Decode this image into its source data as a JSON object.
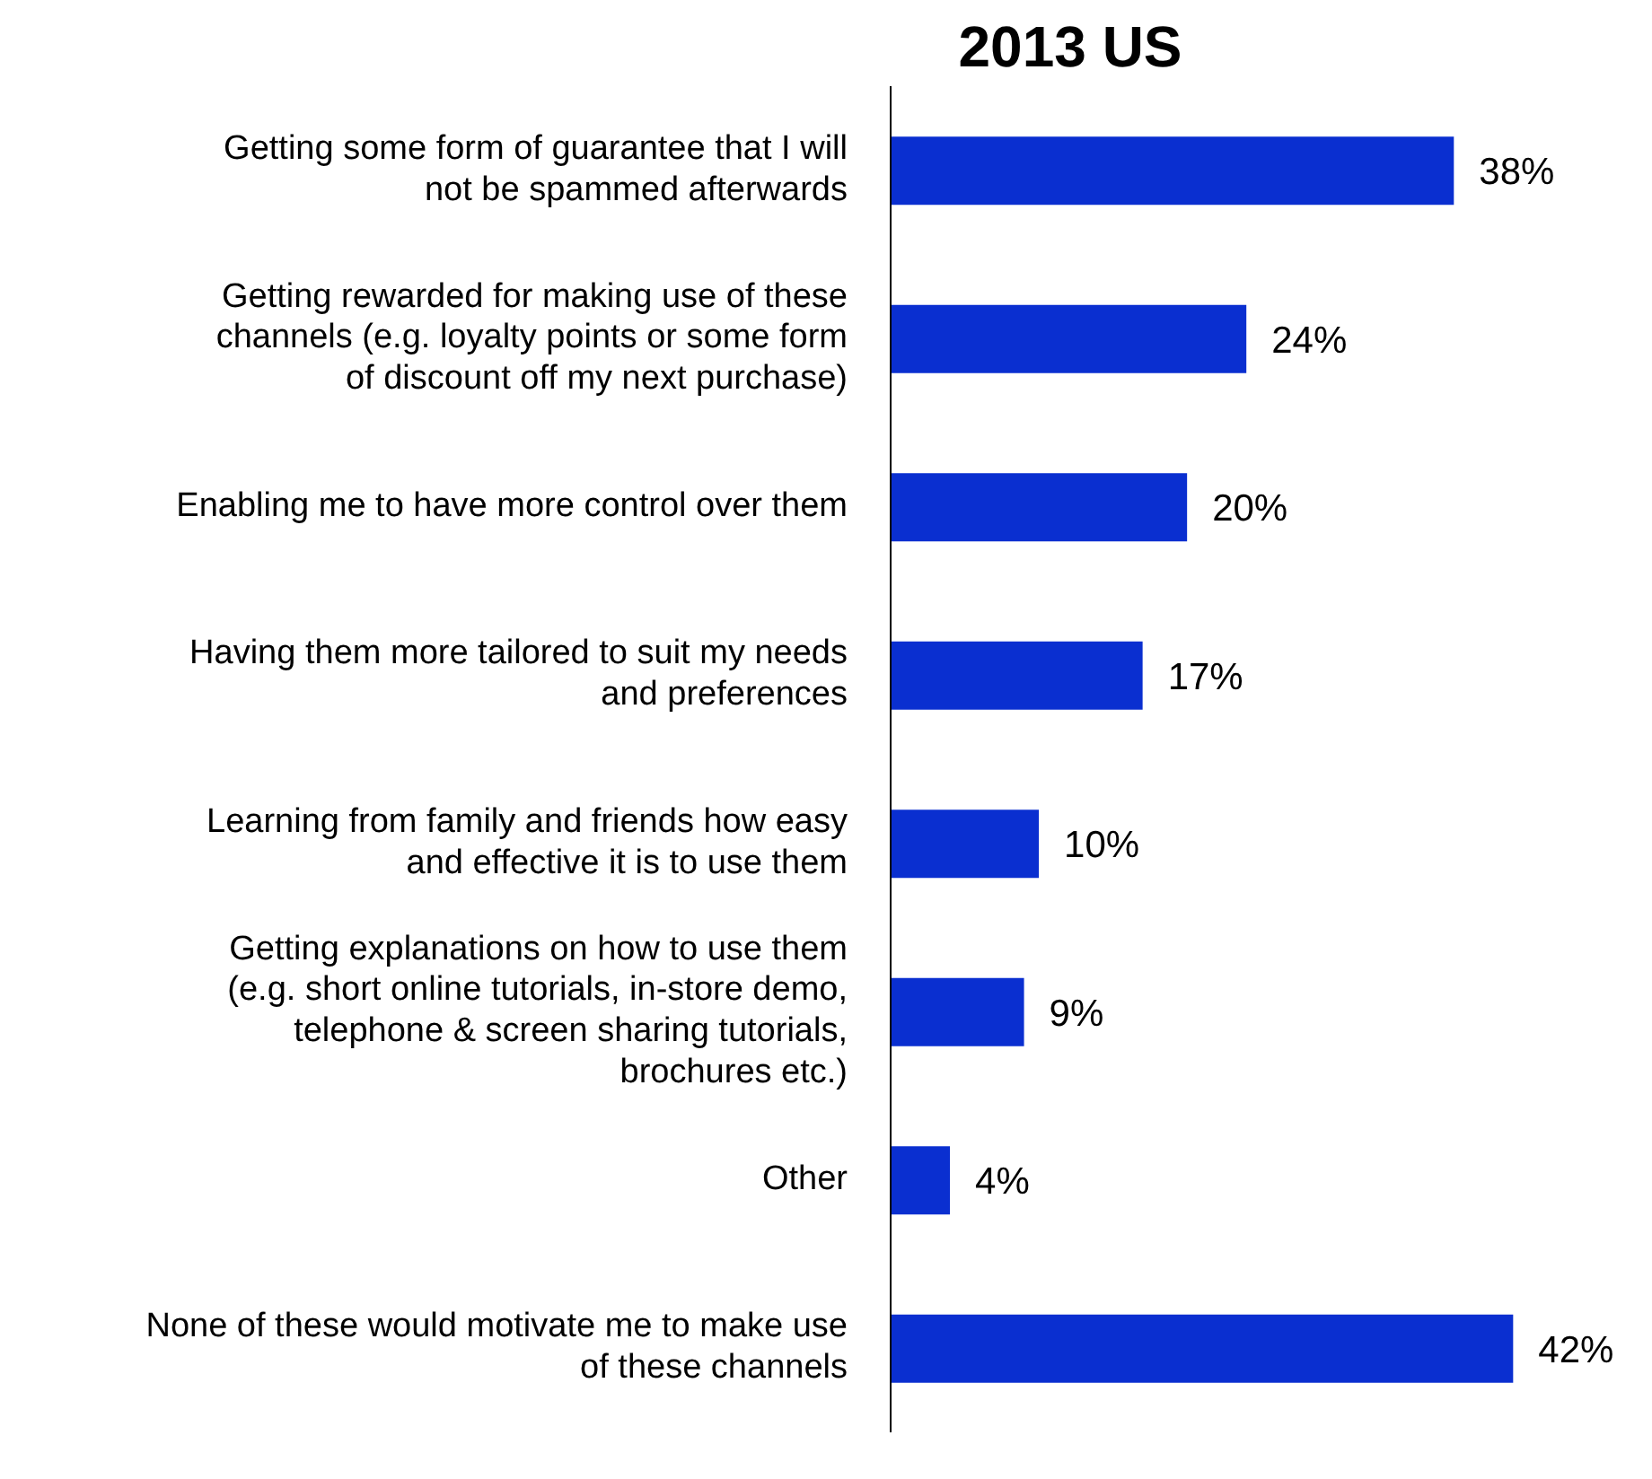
{
  "chart_data": {
    "type": "bar",
    "orientation": "horizontal",
    "title": "2013 US",
    "categories": [
      "Getting some form of guarantee that I will not be spammed afterwards",
      "Getting rewarded for making use of these channels (e.g. loyalty points or some form of discount off my next purchase)",
      "Enabling me to have more control over them",
      "Having them more tailored to suit my needs and preferences",
      "Learning from family and friends how easy and effective it is to use them",
      "Getting explanations on how to use them (e.g. short online tutorials, in-store demo, telephone & screen sharing tutorials, brochures etc.)",
      "Other",
      "None of these would motivate me to make use of these channels"
    ],
    "values": [
      38,
      24,
      20,
      17,
      10,
      9,
      4,
      42
    ],
    "value_labels": [
      "38%",
      "24%",
      "20%",
      "17%",
      "10%",
      "9%",
      "4%",
      "42%"
    ],
    "color": "#0a2fd0",
    "tick_labels": false
  }
}
